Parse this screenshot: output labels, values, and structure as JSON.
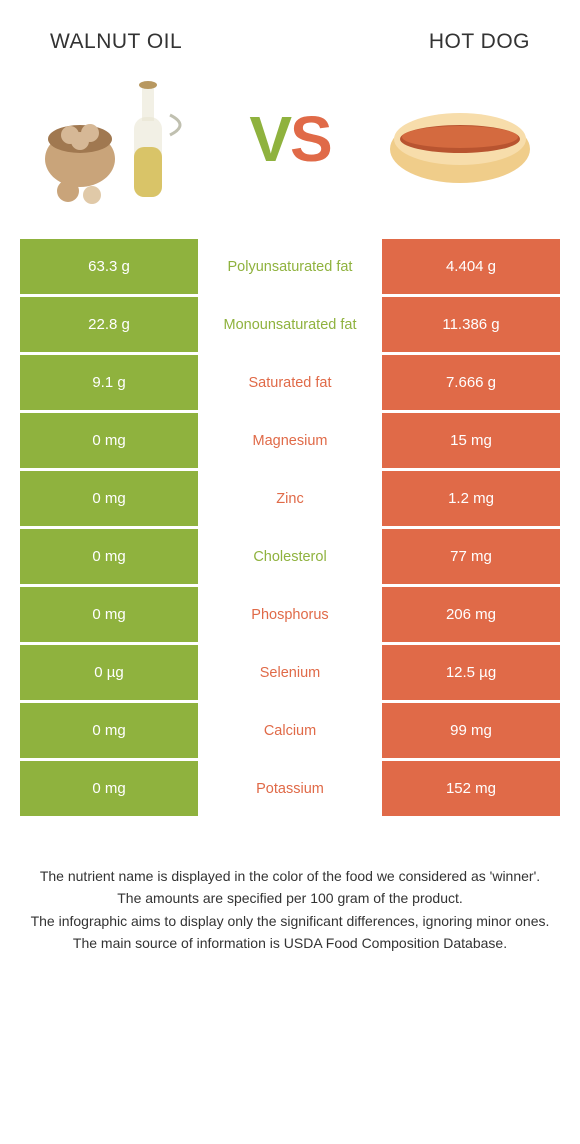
{
  "colors": {
    "left": "#8fb23e",
    "right": "#e06a48",
    "text": "#333333"
  },
  "header": {
    "left_title": "Walnut oil",
    "right_title": "Hot dog",
    "vs_v": "V",
    "vs_s": "S"
  },
  "rows": [
    {
      "left": "63.3 g",
      "label": "Polyunsaturated fat",
      "right": "4.404 g",
      "winner": "left"
    },
    {
      "left": "22.8 g",
      "label": "Monounsaturated fat",
      "right": "11.386 g",
      "winner": "left"
    },
    {
      "left": "9.1 g",
      "label": "Saturated fat",
      "right": "7.666 g",
      "winner": "right"
    },
    {
      "left": "0 mg",
      "label": "Magnesium",
      "right": "15 mg",
      "winner": "right"
    },
    {
      "left": "0 mg",
      "label": "Zinc",
      "right": "1.2 mg",
      "winner": "right"
    },
    {
      "left": "0 mg",
      "label": "Cholesterol",
      "right": "77 mg",
      "winner": "left"
    },
    {
      "left": "0 mg",
      "label": "Phosphorus",
      "right": "206 mg",
      "winner": "right"
    },
    {
      "left": "0 µg",
      "label": "Selenium",
      "right": "12.5 µg",
      "winner": "right"
    },
    {
      "left": "0 mg",
      "label": "Calcium",
      "right": "99 mg",
      "winner": "right"
    },
    {
      "left": "0 mg",
      "label": "Potassium",
      "right": "152 mg",
      "winner": "right"
    }
  ],
  "footer": {
    "line1": "The nutrient name is displayed in the color of the food we considered as 'winner'.",
    "line2": "The amounts are specified per 100 gram of the product.",
    "line3": "The infographic aims to display only the significant differences, ignoring minor ones.",
    "line4": "The main source of information is USDA Food Composition Database."
  }
}
